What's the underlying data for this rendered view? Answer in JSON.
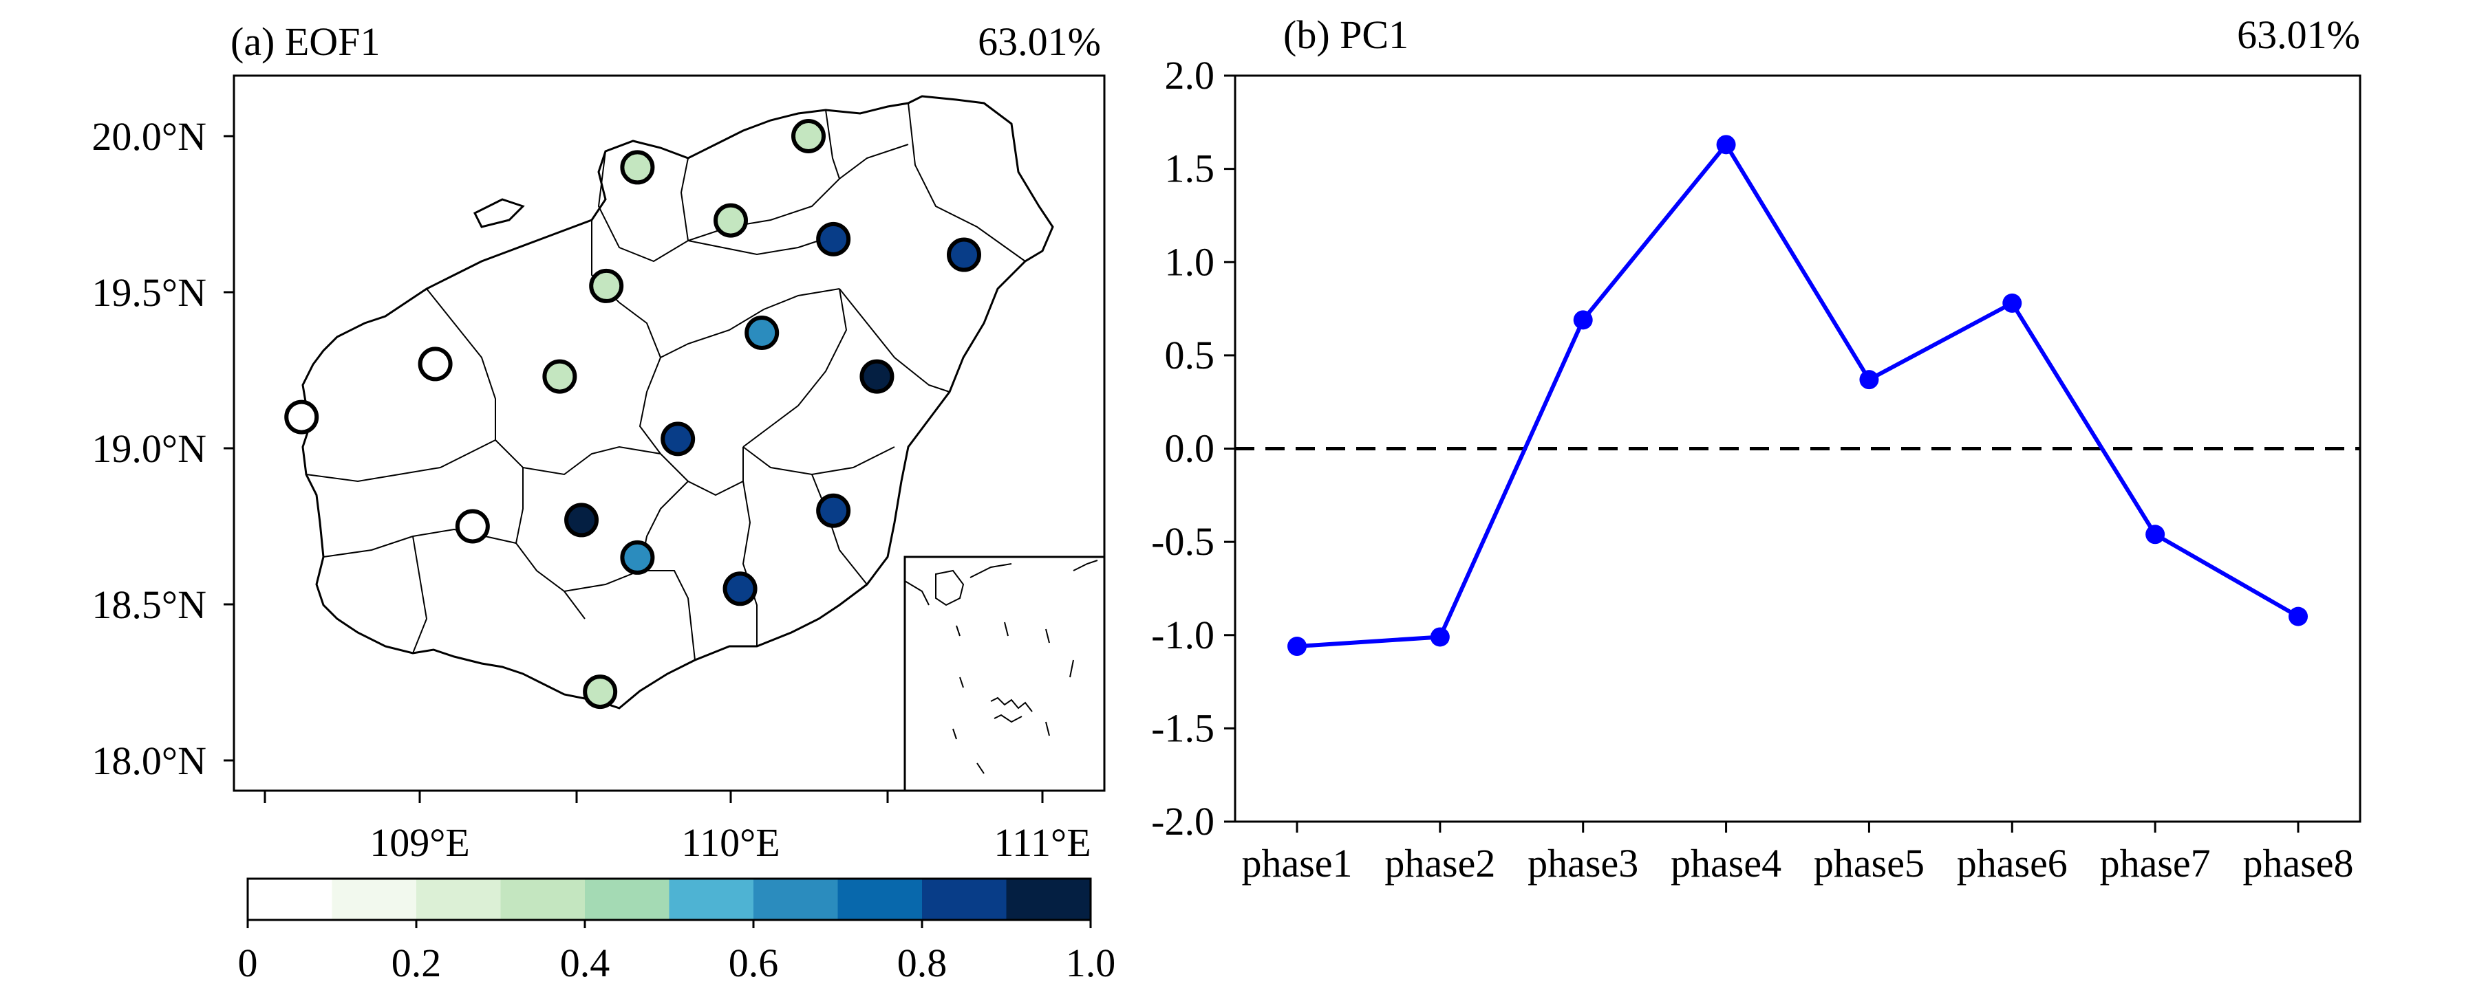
{
  "panel_a": {
    "title": "(a) EOF1",
    "variance": "63.01%",
    "lat_ticks": [
      "20.0°N",
      "19.5°N",
      "19.0°N",
      "18.5°N",
      "18.0°N"
    ],
    "lon_ticks": [
      "109°E",
      "110°E",
      "111°E"
    ],
    "colorbar_ticks": [
      "0",
      "0.2",
      "0.4",
      "0.6",
      "0.8",
      "1.0"
    ],
    "colorbar_colors": [
      "#ffffff",
      "#f2f9ee",
      "#dcf0d6",
      "#c4e6c0",
      "#a4dab4",
      "#4eb3d3",
      "#2b8cbe",
      "#0868ac",
      "#083d88",
      "#041f42"
    ]
  },
  "panel_b": {
    "title": "(b) PC1",
    "variance": "63.01%"
  },
  "chart_data": [
    {
      "type": "scatter",
      "title": "(a) EOF1",
      "annotation": "63.01%",
      "xlim": [
        108.4,
        111.13
      ],
      "ylim": [
        17.9,
        20.2
      ],
      "x_ticks": [
        109,
        110,
        111
      ],
      "y_ticks": [
        18.0,
        18.5,
        19.0,
        19.5,
        20.0
      ],
      "colorbar": {
        "range": [
          0,
          1.0
        ],
        "step": 0.1
      },
      "points": [
        {
          "lon": 110.25,
          "lat": 20.0,
          "value": 0.35
        },
        {
          "lon": 109.7,
          "lat": 19.9,
          "value": 0.35
        },
        {
          "lon": 110.0,
          "lat": 19.73,
          "value": 0.35
        },
        {
          "lon": 110.33,
          "lat": 19.67,
          "value": 0.85
        },
        {
          "lon": 110.75,
          "lat": 19.62,
          "value": 0.85
        },
        {
          "lon": 109.6,
          "lat": 19.52,
          "value": 0.35
        },
        {
          "lon": 110.1,
          "lat": 19.37,
          "value": 0.65
        },
        {
          "lon": 109.05,
          "lat": 19.27,
          "value": 0.05
        },
        {
          "lon": 109.45,
          "lat": 19.23,
          "value": 0.35
        },
        {
          "lon": 110.47,
          "lat": 19.23,
          "value": 0.95
        },
        {
          "lon": 108.62,
          "lat": 19.1,
          "value": 0.05
        },
        {
          "lon": 109.83,
          "lat": 19.03,
          "value": 0.85
        },
        {
          "lon": 110.33,
          "lat": 18.8,
          "value": 0.85
        },
        {
          "lon": 109.52,
          "lat": 18.77,
          "value": 0.95
        },
        {
          "lon": 109.17,
          "lat": 18.75,
          "value": 0.05
        },
        {
          "lon": 109.7,
          "lat": 18.65,
          "value": 0.65
        },
        {
          "lon": 110.03,
          "lat": 18.55,
          "value": 0.85
        },
        {
          "lon": 109.58,
          "lat": 18.22,
          "value": 0.35
        }
      ]
    },
    {
      "type": "line",
      "title": "(b) PC1",
      "annotation": "63.01%",
      "categories": [
        "phase1",
        "phase2",
        "phase3",
        "phase4",
        "phase5",
        "phase6",
        "phase7",
        "phase8"
      ],
      "values": [
        -1.06,
        -1.01,
        0.69,
        1.63,
        0.37,
        0.78,
        -0.46,
        -0.9
      ],
      "y_ticks": [
        "2.0",
        "1.5",
        "1.0",
        "0.5",
        "0.0",
        "-0.5",
        "-1.0",
        "-1.5",
        "-2.0"
      ],
      "ylim": [
        -2.0,
        2.0
      ],
      "line_color": "#0000ff",
      "reference_line": {
        "y": 0.0,
        "style": "dashed",
        "color": "#000000"
      }
    }
  ]
}
